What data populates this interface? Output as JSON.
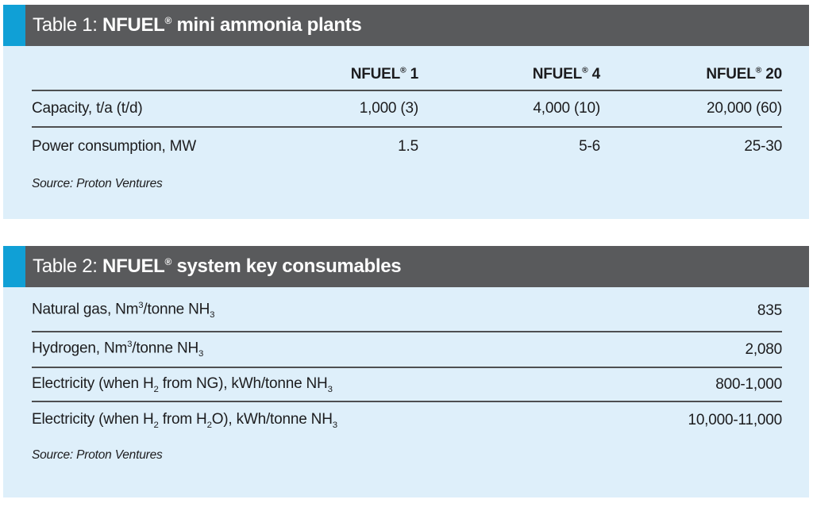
{
  "colors": {
    "accent": "#10a0d6",
    "bar": "#595a5c",
    "panel": "#deeffa",
    "rule": "#4e4f51",
    "text": "#1c1c1e",
    "title_text": "#ffffff"
  },
  "table1": {
    "title": {
      "prefix": "Table 1: ",
      "main": [
        {
          "t": "NFUEL"
        },
        {
          "t": "®",
          "s": "sup"
        },
        {
          "t": " mini ammonia plants"
        }
      ]
    },
    "columns": [
      [
        {
          "t": "NFUEL"
        },
        {
          "t": "®",
          "s": "sup"
        },
        {
          "t": " 1"
        }
      ],
      [
        {
          "t": "NFUEL"
        },
        {
          "t": "®",
          "s": "sup"
        },
        {
          "t": " 4"
        }
      ],
      [
        {
          "t": "NFUEL"
        },
        {
          "t": "®",
          "s": "sup"
        },
        {
          "t": " 20"
        }
      ]
    ],
    "rows": [
      {
        "label": "Capacity, t/a (t/d)",
        "values": [
          "1,000 (3)",
          "4,000 (10)",
          "20,000 (60)"
        ]
      },
      {
        "label": "Power consumption, MW",
        "values": [
          "1.5",
          "5-6",
          "25-30"
        ]
      }
    ],
    "source": "Source: Proton Ventures"
  },
  "table2": {
    "title": {
      "prefix": "Table 2: ",
      "main": [
        {
          "t": "NFUEL"
        },
        {
          "t": "®",
          "s": "sup"
        },
        {
          "t": " system key consumables"
        }
      ]
    },
    "rows": [
      {
        "label": [
          {
            "t": "Natural gas, Nm"
          },
          {
            "t": "3",
            "s": "sup"
          },
          {
            "t": "/tonne NH"
          },
          {
            "t": "3",
            "s": "sub"
          }
        ],
        "value": "835"
      },
      {
        "label": [
          {
            "t": "Hydrogen, Nm"
          },
          {
            "t": "3",
            "s": "sup"
          },
          {
            "t": "/tonne NH"
          },
          {
            "t": "3",
            "s": "sub"
          }
        ],
        "value": "2,080"
      },
      {
        "label": [
          {
            "t": "Electricity (when H"
          },
          {
            "t": "2",
            "s": "sub"
          },
          {
            "t": " from NG), kWh/tonne NH"
          },
          {
            "t": "3",
            "s": "sub"
          }
        ],
        "value": "800-1,000"
      },
      {
        "label": [
          {
            "t": "Electricity (when H"
          },
          {
            "t": "2",
            "s": "sub"
          },
          {
            "t": " from H"
          },
          {
            "t": "2",
            "s": "sub"
          },
          {
            "t": "O), kWh/tonne NH"
          },
          {
            "t": "3",
            "s": "sub"
          }
        ],
        "value": "10,000-11,000"
      }
    ],
    "source": "Source: Proton Ventures"
  }
}
